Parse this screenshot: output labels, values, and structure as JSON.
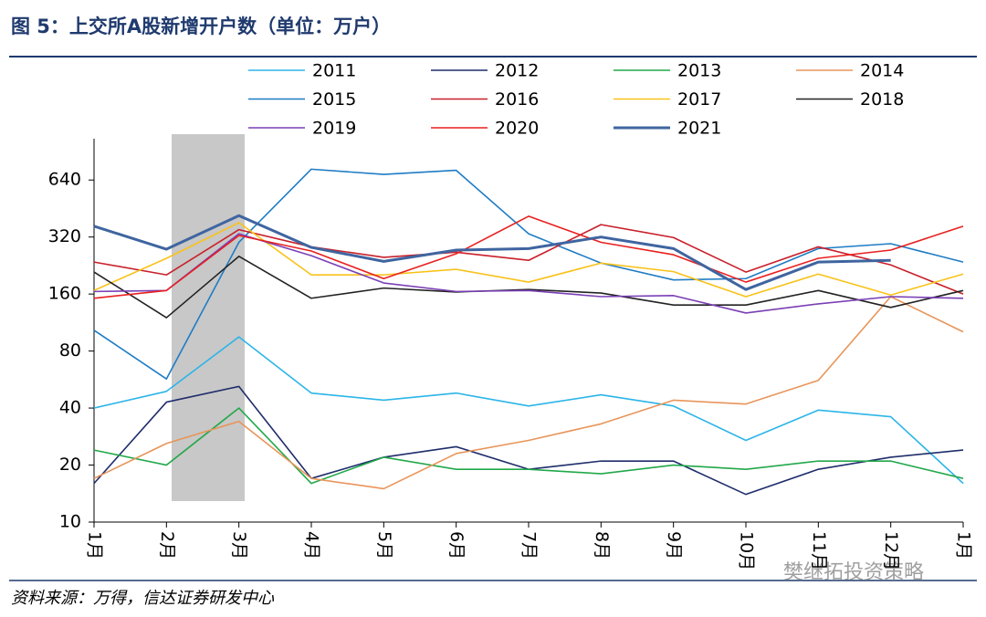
{
  "chart_data": {
    "type": "line",
    "title": "图 5：上交所A股新增开户数（单位：万户）",
    "source": "资料来源：万得，信达证券研发中心",
    "watermark": "樊继拓投资策略",
    "log_scale": true,
    "ylim": [
      10,
      1000
    ],
    "yticks": [
      10,
      20,
      40,
      80,
      160,
      320,
      640
    ],
    "categories": [
      "1月",
      "2月",
      "3月",
      "4月",
      "5月",
      "6月",
      "7月",
      "8月",
      "9月",
      "10月",
      "11月",
      "12月",
      "1月"
    ],
    "series": [
      {
        "name": "2011",
        "color": "#2cb5e8",
        "values": [
          40,
          49,
          95,
          48,
          44,
          48,
          41,
          47,
          41,
          27,
          39,
          36,
          16
        ]
      },
      {
        "name": "2012",
        "color": "#1f2d6b",
        "values": [
          16,
          43,
          52,
          17,
          22,
          25,
          19,
          21,
          21,
          14,
          19,
          22,
          24
        ]
      },
      {
        "name": "2013",
        "color": "#22a84a",
        "values": [
          24,
          20,
          40,
          16,
          22,
          19,
          19,
          18,
          20,
          19,
          21,
          21,
          17
        ]
      },
      {
        "name": "2014",
        "color": "#e8955a",
        "values": [
          17,
          26,
          34,
          17,
          15,
          23,
          27,
          33,
          44,
          42,
          56,
          155,
          101
        ]
      },
      {
        "name": "2015",
        "color": "#1f7cc4",
        "values": [
          103,
          57,
          300,
          730,
          685,
          720,
          333,
          233,
          190,
          193,
          278,
          295,
          236
        ]
      },
      {
        "name": "2016",
        "color": "#c8202a",
        "values": [
          236,
          202,
          350,
          284,
          250,
          266,
          241,
          372,
          318,
          209,
          284,
          228,
          160
        ]
      },
      {
        "name": "2017",
        "color": "#f9c21a",
        "values": [
          167,
          247,
          381,
          202,
          202,
          216,
          185,
          233,
          210,
          155,
          204,
          158,
          204
        ]
      },
      {
        "name": "2018",
        "color": "#222222",
        "values": [
          209,
          120,
          253,
          152,
          172,
          164,
          169,
          162,
          140,
          140,
          167,
          136,
          167
        ]
      },
      {
        "name": "2019",
        "color": "#7a3fb5",
        "values": [
          165,
          167,
          333,
          255,
          183,
          165,
          167,
          155,
          157,
          127,
          142,
          155,
          152
        ]
      },
      {
        "name": "2020",
        "color": "#e8201f",
        "values": [
          152,
          167,
          326,
          270,
          193,
          261,
          412,
          300,
          258,
          185,
          247,
          273,
          365
        ]
      },
      {
        "name": "2021",
        "color": "#3f65a0",
        "width": 3,
        "values": [
          365,
          276,
          415,
          282,
          238,
          273,
          278,
          320,
          278,
          169,
          236,
          241,
          null
        ]
      }
    ]
  }
}
